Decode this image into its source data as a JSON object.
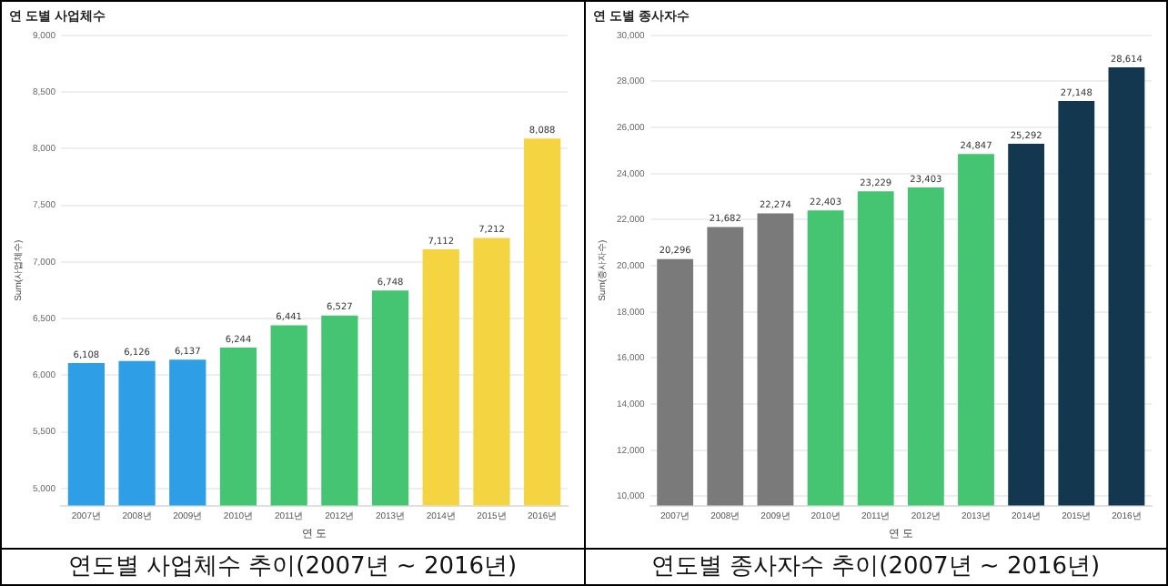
{
  "chart_data": [
    {
      "type": "bar",
      "title": "연 도별 사업체수",
      "xlabel": "연 도",
      "ylabel": "Sum(사업체수)",
      "categories": [
        "2007년",
        "2008년",
        "2009년",
        "2010년",
        "2011년",
        "2012년",
        "2013년",
        "2014년",
        "2015년",
        "2016년"
      ],
      "values": [
        6108,
        6126,
        6137,
        6244,
        6441,
        6527,
        6748,
        7112,
        7212,
        8088
      ],
      "colors": [
        "#2e9fe6",
        "#2e9fe6",
        "#2e9fe6",
        "#45c571",
        "#45c571",
        "#45c571",
        "#45c571",
        "#f5d442",
        "#f5d442",
        "#f5d442"
      ],
      "value_labels": [
        "6,108",
        "6,126",
        "6,137",
        "6,244",
        "6,441",
        "6,527",
        "6,748",
        "7,112",
        "7,212",
        "8,088"
      ],
      "ylim": [
        4850,
        9000
      ],
      "yticks": [
        {
          "value": 5000,
          "label": "5,000"
        },
        {
          "value": 5500,
          "label": "5,500"
        },
        {
          "value": 6000,
          "label": "6,000"
        },
        {
          "value": 6500,
          "label": "6,500"
        },
        {
          "value": 7000,
          "label": "7,000"
        },
        {
          "value": 7500,
          "label": "7,500"
        },
        {
          "value": 8000,
          "label": "8,000"
        },
        {
          "value": 8500,
          "label": "8,500"
        },
        {
          "value": 9000,
          "label": "9,000"
        }
      ],
      "grid": "y",
      "legend": false,
      "annotations": [
        "연도별 사업체수 추이(2007년 ~ 2016년)"
      ]
    },
    {
      "type": "bar",
      "title": "연 도별 종사자수",
      "xlabel": "연 도",
      "ylabel": "Sum(종사자수)",
      "categories": [
        "2007년",
        "2008년",
        "2009년",
        "2010년",
        "2011년",
        "2012년",
        "2013년",
        "2014년",
        "2015년",
        "2016년"
      ],
      "values": [
        20296,
        21682,
        22274,
        22403,
        23229,
        23403,
        24847,
        25292,
        27148,
        28614
      ],
      "colors": [
        "#7a7a7a",
        "#7a7a7a",
        "#7a7a7a",
        "#45c571",
        "#45c571",
        "#45c571",
        "#45c571",
        "#12374f",
        "#12374f",
        "#12374f"
      ],
      "value_labels": [
        "20,296",
        "21,682",
        "22,274",
        "22,403",
        "23,229",
        "23,403",
        "24,847",
        "25,292",
        "27,148",
        "28,614"
      ],
      "ylim": [
        9600,
        30000
      ],
      "yticks": [
        {
          "value": 10000,
          "label": "10,000"
        },
        {
          "value": 12000,
          "label": "12,000"
        },
        {
          "value": 14000,
          "label": "14,000"
        },
        {
          "value": 16000,
          "label": "16,000"
        },
        {
          "value": 18000,
          "label": "18,000"
        },
        {
          "value": 20000,
          "label": "20,000"
        },
        {
          "value": 22000,
          "label": "22,000"
        },
        {
          "value": 24000,
          "label": "24,000"
        },
        {
          "value": 26000,
          "label": "26,000"
        },
        {
          "value": 28000,
          "label": "28,000"
        },
        {
          "value": 30000,
          "label": "30,000"
        }
      ],
      "grid": "y",
      "legend": false,
      "annotations": [
        "연도별 종사자수 추이(2007년 ~ 2016년)"
      ]
    }
  ]
}
